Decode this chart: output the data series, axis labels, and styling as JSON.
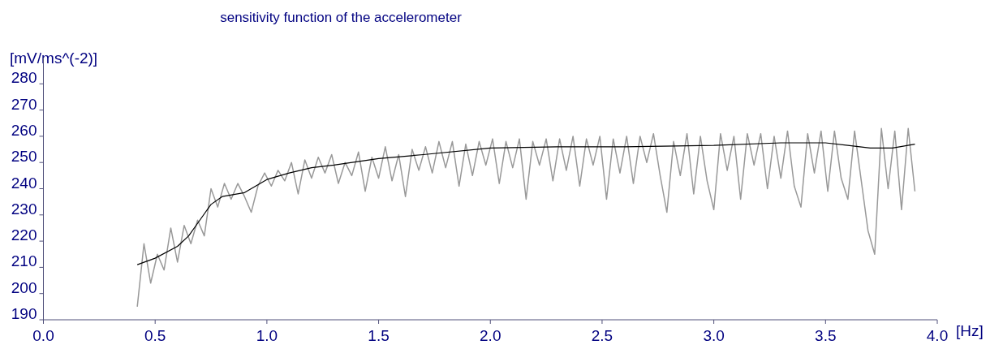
{
  "chart_data": {
    "type": "line",
    "title": "sensitivity function of the accelerometer",
    "xlabel": "[Hz]",
    "ylabel": "[mV/ms^(-2)]",
    "xlim": [
      0,
      4.0
    ],
    "xticks": [
      {
        "value": 0,
        "label": "0.0"
      },
      {
        "value": 0.5,
        "label": "0.5"
      },
      {
        "value": 1,
        "label": "1.0"
      },
      {
        "value": 1.5,
        "label": "1.5"
      },
      {
        "value": 2,
        "label": "2.0"
      },
      {
        "value": 2.5,
        "label": "2.5"
      },
      {
        "value": 3,
        "label": "3.0"
      },
      {
        "value": 3.5,
        "label": "3.5"
      },
      {
        "value": 4,
        "label": "4.0"
      }
    ],
    "ylim": [
      190,
      290
    ],
    "yticks": [
      190,
      200,
      210,
      220,
      230,
      240,
      250,
      260,
      270,
      280
    ],
    "marker": "none",
    "line_style": "solid",
    "series": [
      {
        "color": "#999999",
        "x": [
          0.42,
          0.45,
          0.48,
          0.51,
          0.54,
          0.57,
          0.6,
          0.63,
          0.66,
          0.69,
          0.72,
          0.75,
          0.78,
          0.81,
          0.84,
          0.87,
          0.9,
          0.93,
          0.96,
          0.99,
          1.02,
          1.05,
          1.08,
          1.11,
          1.14,
          1.17,
          1.2,
          1.23,
          1.26,
          1.29,
          1.32,
          1.35,
          1.38,
          1.41,
          1.44,
          1.47,
          1.5,
          1.53,
          1.56,
          1.59,
          1.62,
          1.65,
          1.68,
          1.71,
          1.74,
          1.77,
          1.8,
          1.83,
          1.86,
          1.89,
          1.92,
          1.95,
          1.98,
          2.01,
          2.04,
          2.07,
          2.1,
          2.13,
          2.16,
          2.19,
          2.22,
          2.25,
          2.28,
          2.31,
          2.34,
          2.37,
          2.4,
          2.43,
          2.46,
          2.49,
          2.52,
          2.55,
          2.58,
          2.61,
          2.64,
          2.67,
          2.7,
          2.73,
          2.76,
          2.79,
          2.82,
          2.85,
          2.88,
          2.91,
          2.94,
          2.97,
          3.0,
          3.03,
          3.06,
          3.09,
          3.12,
          3.15,
          3.18,
          3.21,
          3.24,
          3.27,
          3.3,
          3.33,
          3.36,
          3.39,
          3.42,
          3.45,
          3.48,
          3.51,
          3.54,
          3.57,
          3.6,
          3.63,
          3.66,
          3.69,
          3.72,
          3.75,
          3.78,
          3.81,
          3.84,
          3.87,
          3.9
        ],
        "values": [
          195,
          219,
          204,
          215,
          209,
          225,
          212,
          226,
          219,
          228,
          222,
          240,
          233,
          242,
          236,
          242,
          237,
          231,
          241,
          246,
          241,
          247,
          243,
          250,
          238,
          251,
          244,
          252,
          246,
          253,
          242,
          250,
          245,
          254,
          239,
          252,
          244,
          256,
          243,
          253,
          237,
          255,
          247,
          256,
          246,
          258,
          248,
          258,
          241,
          257,
          245,
          258,
          249,
          259,
          242,
          258,
          248,
          259,
          236,
          258,
          249,
          259,
          243,
          259,
          247,
          260,
          241,
          259,
          249,
          260,
          236,
          259,
          246,
          260,
          242,
          260,
          250,
          261,
          245,
          231,
          258,
          245,
          261,
          238,
          260,
          243,
          232,
          261,
          247,
          260,
          236,
          261,
          249,
          261,
          240,
          260,
          244,
          262,
          241,
          233,
          261,
          246,
          262,
          239,
          262,
          244,
          236,
          262,
          243,
          224,
          215,
          263,
          240,
          262,
          232,
          263,
          239
        ]
      },
      {
        "color": "#000000",
        "x": [
          0.42,
          0.5,
          0.6,
          0.65,
          0.7,
          0.75,
          0.8,
          0.9,
          0.95,
          1.0,
          1.1,
          1.2,
          1.3,
          1.5,
          1.7,
          2.0,
          2.3,
          2.6,
          3.0,
          3.3,
          3.5,
          3.6,
          3.7,
          3.8,
          3.9
        ],
        "values": [
          211,
          213.5,
          218,
          222,
          228,
          234,
          237,
          238.5,
          241,
          243.5,
          246,
          248,
          249,
          251.5,
          253,
          255.5,
          256,
          256,
          256.5,
          257.5,
          257.5,
          256.5,
          255.5,
          255.5,
          257
        ]
      }
    ]
  }
}
